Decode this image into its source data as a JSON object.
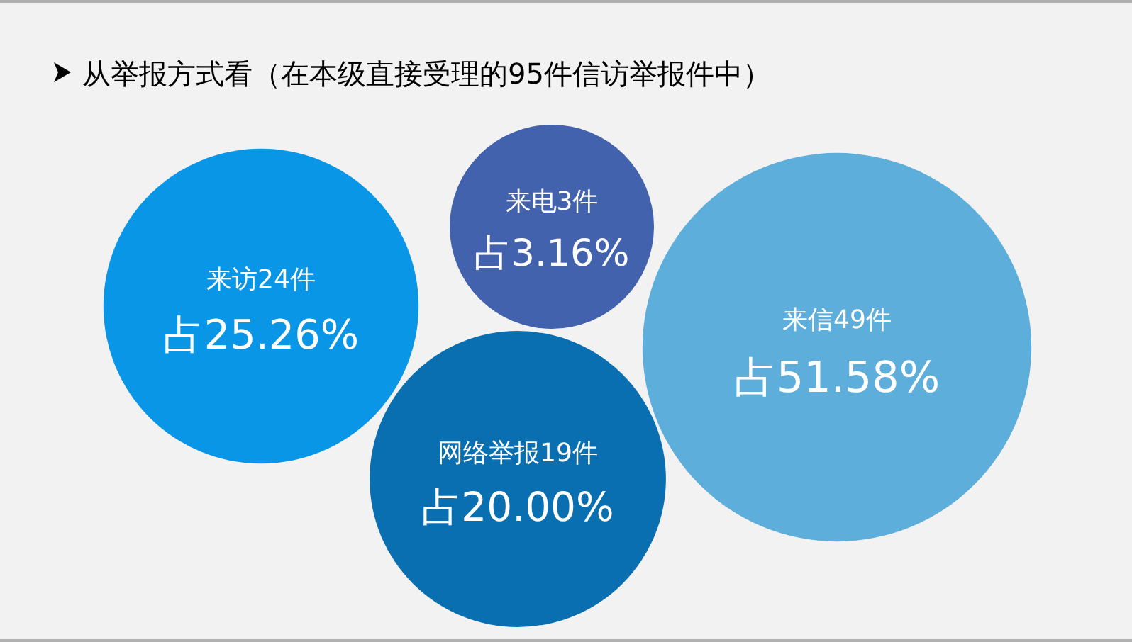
{
  "chart_data": {
    "type": "other",
    "title": "从举报方式看（在本级直接受理的95件信访举报件中）",
    "categories": [
      "来访24件",
      "来电3件",
      "来信49件",
      "网络举报19件"
    ],
    "values": [
      25.26,
      3.16,
      51.58,
      20.0
    ],
    "value_labels": [
      "占25.26%",
      "占3.16%",
      "占51.58%",
      "占20.00%"
    ],
    "colors": [
      "#0a96e6",
      "#4262ae",
      "#5daedb",
      "#0a6fb0"
    ]
  }
}
